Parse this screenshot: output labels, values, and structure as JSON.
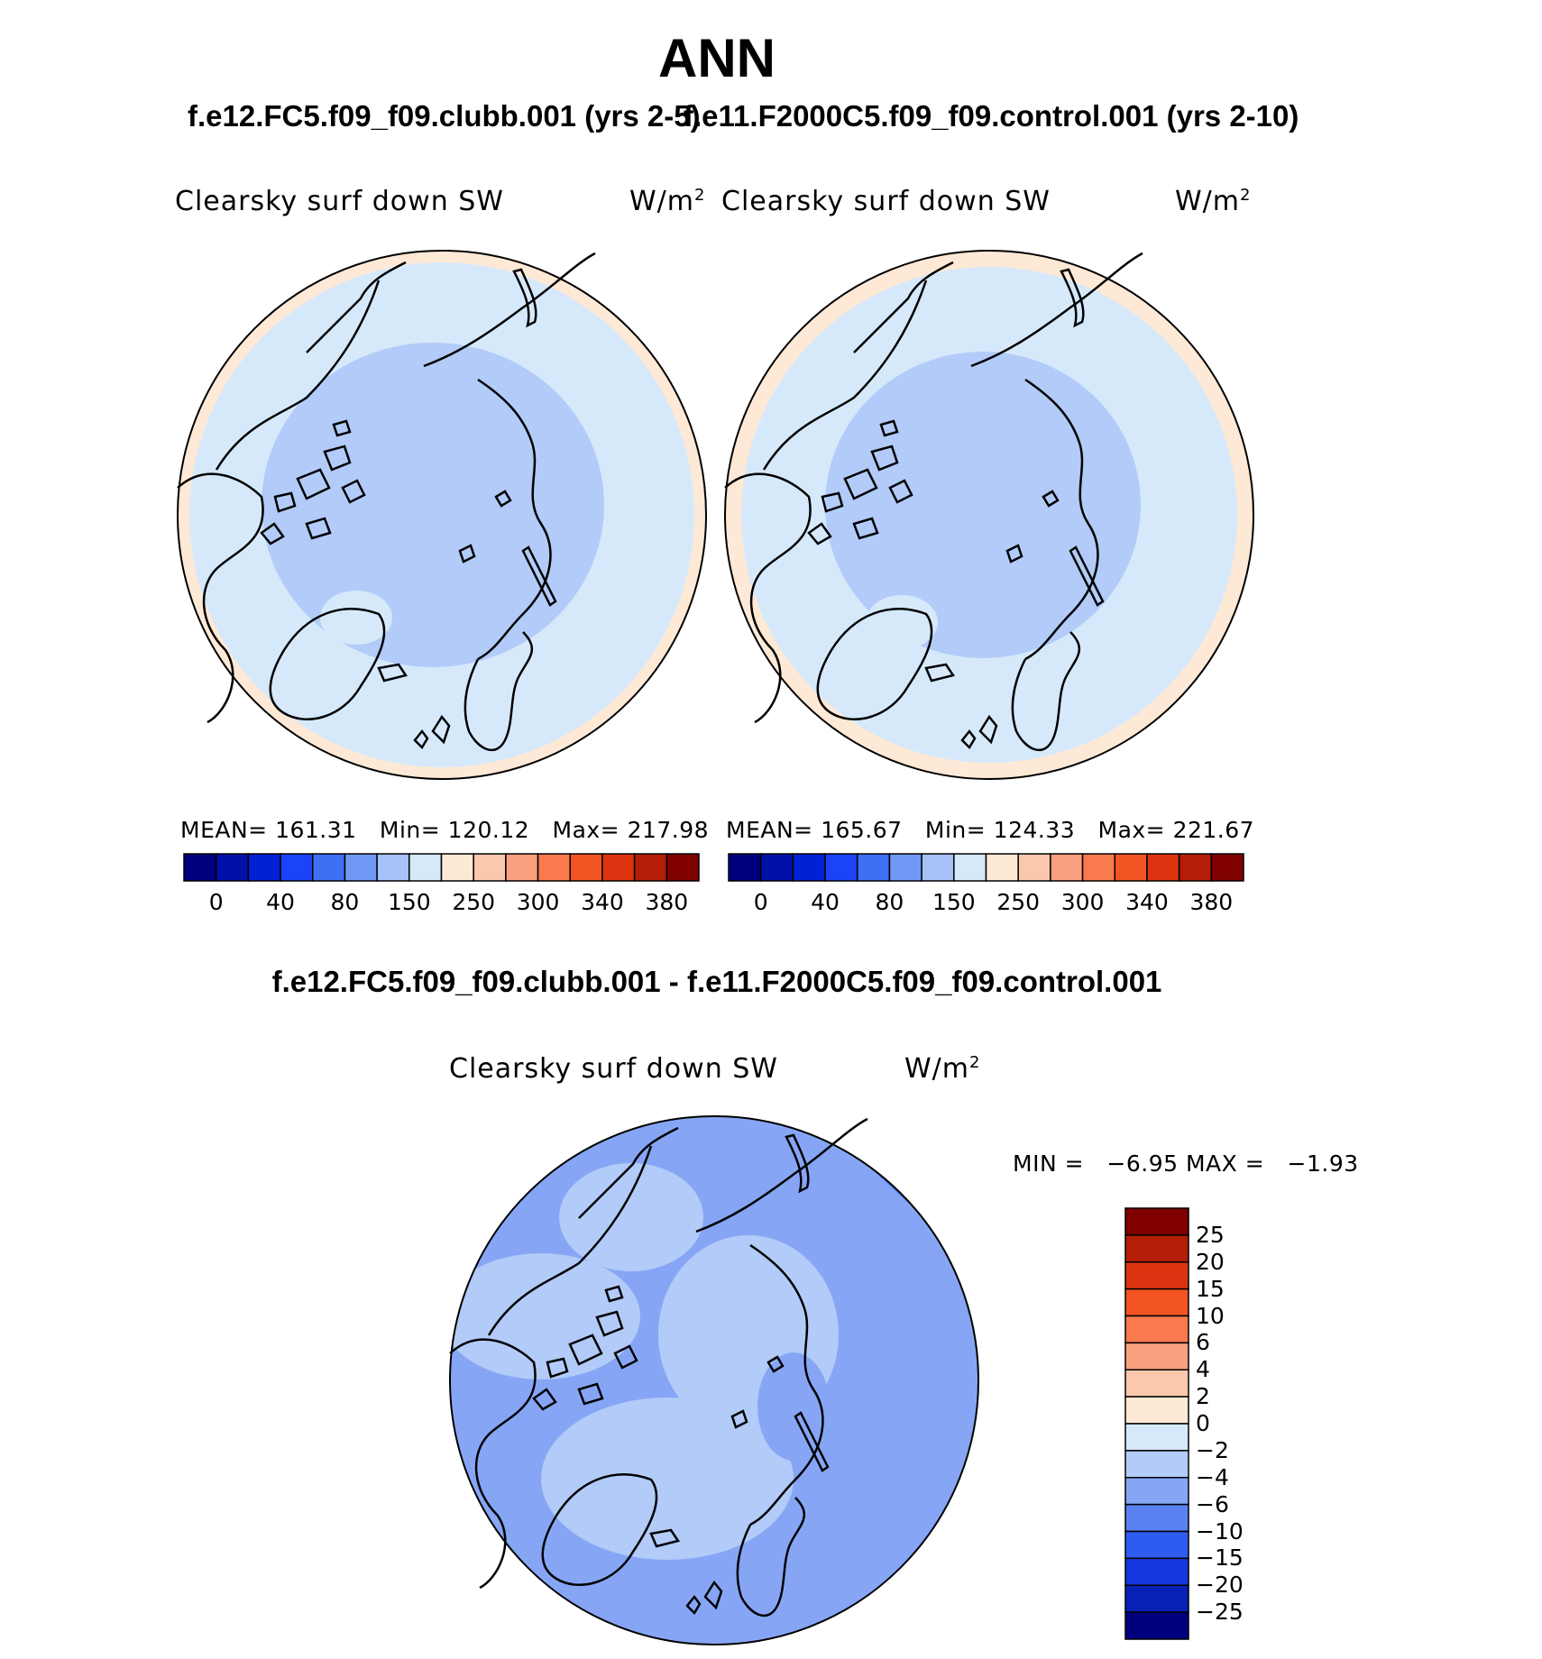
{
  "main_title": "ANN",
  "panels": [
    {
      "case_title": "f.e12.FC5.f09_f09.clubb.001 (yrs 2-5)",
      "variable": "Clearsky surf down SW",
      "units_base": "W/m",
      "units_exp": "2",
      "stats": {
        "mean_label": "MEAN=",
        "mean": "161.31",
        "min_label": "Min=",
        "min": "120.12",
        "max_label": "Max=",
        "max": "217.98"
      },
      "colorbar_ticks": [
        "0",
        "40",
        "80",
        "150",
        "250",
        "300",
        "340",
        "380"
      ]
    },
    {
      "case_title": "f.e11.F2000C5.f09_f09.control.001 (yrs 2-10)",
      "variable": "Clearsky surf down SW",
      "units_base": "W/m",
      "units_exp": "2",
      "stats": {
        "mean_label": "MEAN=",
        "mean": "165.67",
        "min_label": "Min=",
        "min": "124.33",
        "max_label": "Max=",
        "max": "221.67"
      },
      "colorbar_ticks": [
        "0",
        "40",
        "80",
        "150",
        "250",
        "300",
        "340",
        "380"
      ]
    }
  ],
  "diff": {
    "title": "f.e12.FC5.f09_f09.clubb.001 - f.e11.F2000C5.f09_f09.control.001",
    "variable": "Clearsky surf down SW",
    "units_base": "W/m",
    "units_exp": "2",
    "min_label": "MIN =",
    "min": "−6.95",
    "max_label": "MAX =",
    "max": "−1.93",
    "colorbar_ticks": [
      "25",
      "20",
      "15",
      "10",
      "6",
      "4",
      "2",
      "0",
      "−2",
      "−4",
      "−6",
      "−10",
      "−15",
      "−20",
      "−25"
    ]
  },
  "colors": {
    "abs_scale": [
      "#00007f",
      "#0011a8",
      "#0022d4",
      "#1a44f5",
      "#3f6ff5",
      "#6f99f5",
      "#a6c2f7",
      "#d6e9fb",
      "#fde9d6",
      "#fbc8ad",
      "#f9a07f",
      "#f87a4e",
      "#f25424",
      "#dc3410",
      "#b41e07",
      "#800000"
    ],
    "diff_scale": [
      "#800000",
      "#b41e07",
      "#dc3410",
      "#f25424",
      "#f87a4e",
      "#f9a07f",
      "#fbc8ad",
      "#fde9d6",
      "#d6e9fb",
      "#b2cbf8",
      "#86a6f5",
      "#5a82f3",
      "#2f5cf0",
      "#1438de",
      "#0820b4",
      "#00007f"
    ]
  }
}
